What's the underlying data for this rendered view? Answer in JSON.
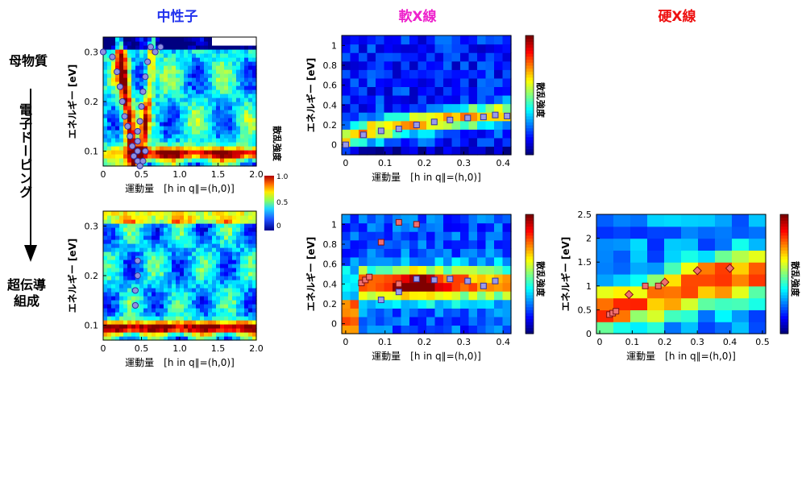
{
  "columns": {
    "neutron": {
      "title": "中性子",
      "color": "#2233ee"
    },
    "soft_xray": {
      "title": "軟X線",
      "color": "#ee22cc"
    },
    "hard_xray": {
      "title": "硬X線",
      "color": "#ee1111"
    }
  },
  "rows": {
    "parent": "母物質",
    "doping": "電子ドーピング",
    "superconducting": "超伝導\n組成"
  },
  "colorbar_label": "散乱強度",
  "neutron_colorbar_ticks": [
    "1.0",
    "0.5",
    "0"
  ],
  "chart_data": [
    {
      "id": "neutron-parent",
      "type": "heatmap",
      "xlabel": "運動量　[h in q∥=(h,0)]",
      "ylabel": "エネルギー [eV]",
      "xlim": [
        0,
        2.0
      ],
      "ylim": [
        0.07,
        0.33
      ],
      "xticks": [
        "0",
        "0.5",
        "1.0",
        "1.5",
        "2.0"
      ],
      "yticks": [
        "0.1",
        "0.2",
        "0.3"
      ],
      "points": [
        {
          "x": 0.0,
          "y": 0.3
        },
        {
          "x": 0.12,
          "y": 0.29
        },
        {
          "x": 0.18,
          "y": 0.26
        },
        {
          "x": 0.22,
          "y": 0.23
        },
        {
          "x": 0.25,
          "y": 0.2
        },
        {
          "x": 0.28,
          "y": 0.17
        },
        {
          "x": 0.32,
          "y": 0.15
        },
        {
          "x": 0.35,
          "y": 0.13
        },
        {
          "x": 0.38,
          "y": 0.11
        },
        {
          "x": 0.4,
          "y": 0.09
        },
        {
          "x": 0.45,
          "y": 0.14
        },
        {
          "x": 0.45,
          "y": 0.12
        },
        {
          "x": 0.45,
          "y": 0.1
        },
        {
          "x": 0.45,
          "y": 0.08
        },
        {
          "x": 0.48,
          "y": 0.16
        },
        {
          "x": 0.5,
          "y": 0.19
        },
        {
          "x": 0.52,
          "y": 0.22
        },
        {
          "x": 0.55,
          "y": 0.25
        },
        {
          "x": 0.58,
          "y": 0.28
        },
        {
          "x": 0.62,
          "y": 0.31
        },
        {
          "x": 0.55,
          "y": 0.1
        },
        {
          "x": 0.52,
          "y": 0.08
        },
        {
          "x": 0.48,
          "y": 0.07
        },
        {
          "x": 0.75,
          "y": 0.31
        },
        {
          "x": 0.68,
          "y": 0.3
        }
      ]
    },
    {
      "id": "neutron-sc",
      "type": "heatmap",
      "xlabel": "運動量　[h in q∥=(h,0)]",
      "ylabel": "エネルギー [eV]",
      "xlim": [
        0,
        2.0
      ],
      "ylim": [
        0.07,
        0.33
      ],
      "xticks": [
        "0",
        "0.5",
        "1.0",
        "1.5",
        "2.0"
      ],
      "yticks": [
        "0.1",
        "0.2",
        "0.3"
      ],
      "points": [
        {
          "x": 0.45,
          "y": 0.23
        },
        {
          "x": 0.45,
          "y": 0.2
        },
        {
          "x": 0.42,
          "y": 0.17
        },
        {
          "x": 0.42,
          "y": 0.14
        }
      ]
    },
    {
      "id": "soft-parent",
      "type": "heatmap",
      "xlabel": "運動量　[h in q∥=(h,0)]",
      "ylabel": "エネルギー [eV]",
      "xlim": [
        -0.01,
        0.42
      ],
      "ylim": [
        -0.1,
        1.1
      ],
      "xticks": [
        "0",
        "0.1",
        "0.2",
        "0.3",
        "0.4"
      ],
      "yticks": [
        "0",
        "0.2",
        "0.4",
        "0.6",
        "0.8",
        "1"
      ],
      "points": [
        {
          "x": 0.0,
          "y": 0.0
        },
        {
          "x": 0.045,
          "y": 0.1
        },
        {
          "x": 0.09,
          "y": 0.14
        },
        {
          "x": 0.135,
          "y": 0.16
        },
        {
          "x": 0.18,
          "y": 0.2
        },
        {
          "x": 0.225,
          "y": 0.23
        },
        {
          "x": 0.265,
          "y": 0.25
        },
        {
          "x": 0.31,
          "y": 0.27
        },
        {
          "x": 0.35,
          "y": 0.28
        },
        {
          "x": 0.38,
          "y": 0.3
        },
        {
          "x": 0.41,
          "y": 0.29
        }
      ]
    },
    {
      "id": "soft-sc",
      "type": "heatmap",
      "xlabel": "運動量　[h in q∥=(h,0)]",
      "ylabel": "エネルギー [eV]",
      "xlim": [
        -0.01,
        0.42
      ],
      "ylim": [
        -0.1,
        1.1
      ],
      "xticks": [
        "0",
        "0.1",
        "0.2",
        "0.3",
        "0.4"
      ],
      "yticks": [
        "0",
        "0.2",
        "0.4",
        "0.6",
        "0.8",
        "1"
      ],
      "points_red": [
        {
          "x": 0.04,
          "y": 0.41
        },
        {
          "x": 0.05,
          "y": 0.44
        },
        {
          "x": 0.06,
          "y": 0.47
        },
        {
          "x": 0.09,
          "y": 0.82
        },
        {
          "x": 0.135,
          "y": 1.02
        },
        {
          "x": 0.18,
          "y": 1.0
        },
        {
          "x": 0.135,
          "y": 0.4
        }
      ],
      "points_blue": [
        {
          "x": 0.09,
          "y": 0.24
        },
        {
          "x": 0.135,
          "y": 0.32
        },
        {
          "x": 0.18,
          "y": 0.45
        },
        {
          "x": 0.225,
          "y": 0.44
        },
        {
          "x": 0.265,
          "y": 0.45
        },
        {
          "x": 0.31,
          "y": 0.43
        },
        {
          "x": 0.35,
          "y": 0.38
        },
        {
          "x": 0.38,
          "y": 0.43
        }
      ]
    },
    {
      "id": "hard-sc",
      "type": "heatmap",
      "xlabel": "運動量　[h in q∥=(h,0)]",
      "ylabel": "エネルギー [eV]",
      "xlim": [
        -0.01,
        0.51
      ],
      "ylim": [
        0,
        2.5
      ],
      "xticks": [
        "0",
        "0.1",
        "0.2",
        "0.3",
        "0.4",
        "0.5"
      ],
      "yticks": [
        "0",
        "0.5",
        "1",
        "1.5",
        "2",
        "2.5"
      ],
      "points_square": [
        {
          "x": 0.03,
          "y": 0.4
        },
        {
          "x": 0.04,
          "y": 0.43
        },
        {
          "x": 0.05,
          "y": 0.47
        },
        {
          "x": 0.14,
          "y": 1.0
        },
        {
          "x": 0.18,
          "y": 1.0
        }
      ],
      "points_diamond": [
        {
          "x": 0.09,
          "y": 0.82
        },
        {
          "x": 0.2,
          "y": 1.08
        },
        {
          "x": 0.3,
          "y": 1.32
        },
        {
          "x": 0.4,
          "y": 1.37
        }
      ]
    }
  ]
}
